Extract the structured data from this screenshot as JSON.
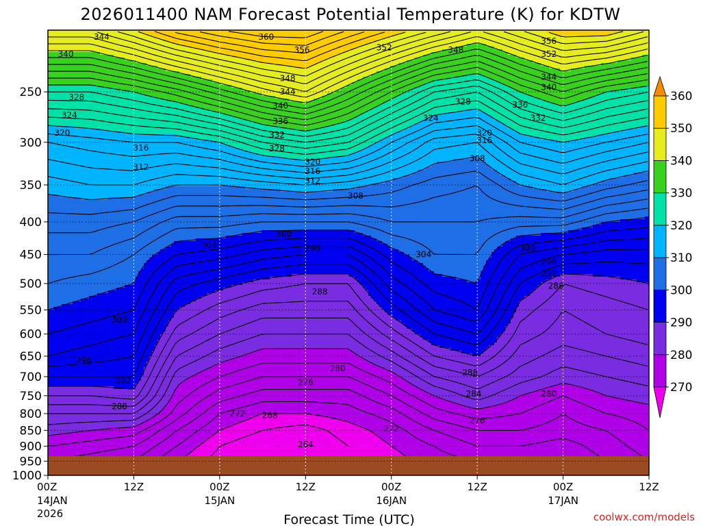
{
  "chart_data": {
    "type": "heatmap",
    "title": "2026011400 NAM Forecast Potential Temperature (K) for KDTW",
    "xlabel": "Forecast Time (UTC)",
    "ylabel": "",
    "x_ticks": [
      {
        "hour": 0,
        "label": "00Z",
        "day": "14JAN",
        "year": "2026"
      },
      {
        "hour": 12,
        "label": "12Z",
        "day": "",
        "year": ""
      },
      {
        "hour": 24,
        "label": "00Z",
        "day": "15JAN",
        "year": ""
      },
      {
        "hour": 36,
        "label": "12Z",
        "day": "",
        "year": ""
      },
      {
        "hour": 48,
        "label": "00Z",
        "day": "16JAN",
        "year": ""
      },
      {
        "hour": 60,
        "label": "12Z",
        "day": "",
        "year": ""
      },
      {
        "hour": 72,
        "label": "00Z",
        "day": "17JAN",
        "year": ""
      },
      {
        "hour": 84,
        "label": "12Z",
        "day": "",
        "year": ""
      }
    ],
    "xlim": [
      0,
      84
    ],
    "y_ticks": [
      250,
      300,
      350,
      400,
      450,
      500,
      550,
      600,
      650,
      700,
      750,
      800,
      850,
      900,
      950,
      1000
    ],
    "ylim": [
      1000,
      200
    ],
    "y_scale": "log-pressure",
    "grid": true,
    "ground_pressure": 975,
    "colorbar": {
      "levels": [
        270,
        280,
        290,
        300,
        310,
        320,
        330,
        340,
        350,
        360
      ],
      "labels": [
        "270",
        "280",
        "290",
        "300",
        "310",
        "320",
        "330",
        "340",
        "350",
        "360"
      ],
      "colors": [
        "#ee00ee",
        "#b000e8",
        "#7a2ce0",
        "#0000f0",
        "#1e6ee6",
        "#00b4ff",
        "#00e2a8",
        "#38d21e",
        "#e6ec1e",
        "#ffcc00",
        "#f58c00"
      ],
      "extend": "both"
    },
    "contour_interval": 2,
    "profiles": [
      {
        "hour": 0,
        "p": [
          1000,
          950,
          900,
          850,
          800,
          750,
          700,
          650,
          600,
          550,
          500,
          450,
          400,
          350,
          300,
          250,
          200
        ],
        "theta": [
          274,
          276,
          278,
          281,
          284,
          288,
          292,
          296,
          298,
          300,
          302,
          304,
          307,
          311,
          316,
          328,
          346
        ]
      },
      {
        "hour": 6,
        "p": [
          1000,
          950,
          900,
          850,
          800,
          750,
          700,
          650,
          600,
          550,
          500,
          450,
          400,
          350,
          300,
          250,
          200
        ],
        "theta": [
          273,
          275,
          277,
          280,
          284,
          288,
          292,
          295,
          297,
          299,
          301,
          304,
          307,
          312,
          317,
          328,
          346
        ]
      },
      {
        "hour": 12,
        "p": [
          1000,
          950,
          900,
          850,
          800,
          750,
          700,
          650,
          600,
          550,
          500,
          450,
          400,
          350,
          300,
          250,
          200
        ],
        "theta": [
          272,
          274,
          276,
          279,
          284,
          289,
          292,
          294,
          296,
          298,
          300,
          302,
          306,
          312,
          318,
          330,
          350
        ]
      },
      {
        "hour": 18,
        "p": [
          1000,
          950,
          900,
          850,
          800,
          750,
          700,
          650,
          600,
          550,
          500,
          450,
          400,
          350,
          300,
          250,
          200
        ],
        "theta": [
          268,
          270,
          272,
          274,
          277,
          279,
          281,
          284,
          287,
          290,
          293,
          298,
          303,
          310,
          318,
          333,
          355
        ]
      },
      {
        "hour": 24,
        "p": [
          1000,
          950,
          900,
          850,
          800,
          750,
          700,
          650,
          600,
          550,
          500,
          450,
          400,
          350,
          300,
          250,
          200
        ],
        "theta": [
          266,
          267,
          268,
          270,
          272,
          275,
          278,
          281,
          284,
          287,
          291,
          297,
          303,
          310,
          320,
          337,
          358
        ]
      },
      {
        "hour": 30,
        "p": [
          1000,
          950,
          900,
          850,
          800,
          750,
          700,
          650,
          600,
          550,
          500,
          450,
          400,
          350,
          300,
          250,
          200
        ],
        "theta": [
          265,
          266,
          266,
          268,
          270,
          273,
          276,
          279,
          282,
          285,
          289,
          295,
          302,
          311,
          324,
          341,
          360
        ]
      },
      {
        "hour": 36,
        "p": [
          1000,
          950,
          900,
          850,
          800,
          750,
          700,
          650,
          600,
          550,
          500,
          450,
          400,
          350,
          300,
          250,
          200
        ],
        "theta": [
          266,
          266,
          266,
          267,
          270,
          273,
          276,
          279,
          282,
          285,
          288,
          294,
          302,
          312,
          326,
          344,
          360
        ]
      },
      {
        "hour": 42,
        "p": [
          1000,
          950,
          900,
          850,
          800,
          750,
          700,
          650,
          600,
          550,
          500,
          450,
          400,
          350,
          300,
          250,
          200
        ],
        "theta": [
          268,
          268,
          268,
          269,
          271,
          273,
          276,
          279,
          282,
          285,
          288,
          294,
          302,
          311,
          324,
          338,
          356
        ]
      },
      {
        "hour": 48,
        "p": [
          1000,
          950,
          900,
          850,
          800,
          750,
          700,
          650,
          600,
          550,
          500,
          450,
          400,
          350,
          300,
          250,
          200
        ],
        "theta": [
          269,
          269,
          270,
          271,
          273,
          276,
          279,
          283,
          287,
          291,
          295,
          299,
          304,
          309,
          318,
          332,
          352
        ]
      },
      {
        "hour": 54,
        "p": [
          1000,
          950,
          900,
          850,
          800,
          750,
          700,
          650,
          600,
          550,
          500,
          450,
          400,
          350,
          300,
          250,
          200
        ],
        "theta": [
          270,
          271,
          272,
          274,
          277,
          280,
          284,
          288,
          292,
          296,
          299,
          302,
          304,
          307,
          313,
          326,
          348
        ]
      },
      {
        "hour": 60,
        "p": [
          1000,
          950,
          900,
          850,
          800,
          750,
          700,
          650,
          600,
          550,
          500,
          450,
          400,
          350,
          300,
          250,
          200
        ],
        "theta": [
          271,
          272,
          274,
          276,
          279,
          283,
          286,
          290,
          294,
          298,
          300,
          302,
          304,
          306,
          312,
          324,
          344
        ]
      },
      {
        "hour": 66,
        "p": [
          1000,
          950,
          900,
          850,
          800,
          750,
          700,
          650,
          600,
          550,
          500,
          450,
          400,
          350,
          300,
          250,
          200
        ],
        "theta": [
          271,
          272,
          274,
          276,
          278,
          280,
          283,
          285,
          287,
          289,
          292,
          296,
          303,
          310,
          318,
          330,
          348
        ]
      },
      {
        "hour": 72,
        "p": [
          1000,
          950,
          900,
          850,
          800,
          750,
          700,
          650,
          600,
          550,
          500,
          450,
          400,
          350,
          300,
          250,
          200
        ],
        "theta": [
          271,
          272,
          273,
          275,
          276,
          278,
          281,
          283,
          285,
          286,
          288,
          294,
          303,
          312,
          320,
          334,
          352
        ]
      },
      {
        "hour": 78,
        "p": [
          1000,
          950,
          900,
          850,
          800,
          750,
          700,
          650,
          600,
          550,
          500,
          450,
          400,
          350,
          300,
          250,
          200
        ],
        "theta": [
          273,
          274,
          275,
          276,
          278,
          280,
          282,
          284,
          286,
          287,
          289,
          293,
          300,
          309,
          318,
          330,
          352
        ]
      },
      {
        "hour": 84,
        "p": [
          1000,
          950,
          900,
          850,
          800,
          750,
          700,
          650,
          600,
          550,
          500,
          450,
          400,
          350,
          300,
          250,
          200
        ],
        "theta": [
          275,
          276,
          277,
          278,
          279,
          281,
          283,
          285,
          287,
          288,
          290,
          293,
          299,
          307,
          316,
          328,
          348
        ]
      }
    ],
    "annotations": [
      {
        "hour": 7.5,
        "p": 205,
        "text": "344"
      },
      {
        "hour": 2.5,
        "p": 218,
        "text": "340"
      },
      {
        "hour": 4,
        "p": 255,
        "text": "328"
      },
      {
        "hour": 3,
        "p": 272,
        "text": "324"
      },
      {
        "hour": 2,
        "p": 290,
        "text": "320"
      },
      {
        "hour": 13,
        "p": 306,
        "text": "316"
      },
      {
        "hour": 13,
        "p": 328,
        "text": "312"
      },
      {
        "hour": 10,
        "p": 570,
        "text": "300"
      },
      {
        "hour": 5,
        "p": 660,
        "text": "296"
      },
      {
        "hour": 10.5,
        "p": 710,
        "text": "292"
      },
      {
        "hour": 10,
        "p": 780,
        "text": "288"
      },
      {
        "hour": 30.5,
        "p": 205,
        "text": "360"
      },
      {
        "hour": 35.5,
        "p": 215,
        "text": "356"
      },
      {
        "hour": 33.5,
        "p": 238,
        "text": "348"
      },
      {
        "hour": 33.5,
        "p": 250,
        "text": "344"
      },
      {
        "hour": 32.5,
        "p": 263,
        "text": "340"
      },
      {
        "hour": 32.5,
        "p": 278,
        "text": "336"
      },
      {
        "hour": 32,
        "p": 292,
        "text": "332"
      },
      {
        "hour": 32,
        "p": 307,
        "text": "328"
      },
      {
        "hour": 37,
        "p": 322,
        "text": "320"
      },
      {
        "hour": 37,
        "p": 333,
        "text": "316"
      },
      {
        "hour": 37,
        "p": 345,
        "text": "312"
      },
      {
        "hour": 43,
        "p": 364,
        "text": "308"
      },
      {
        "hour": 22.5,
        "p": 435,
        "text": "304"
      },
      {
        "hour": 33,
        "p": 418,
        "text": "300"
      },
      {
        "hour": 37,
        "p": 440,
        "text": "296"
      },
      {
        "hour": 38,
        "p": 515,
        "text": "288"
      },
      {
        "hour": 40.5,
        "p": 680,
        "text": "280"
      },
      {
        "hour": 36,
        "p": 715,
        "text": "276"
      },
      {
        "hour": 26.5,
        "p": 800,
        "text": "272"
      },
      {
        "hour": 31,
        "p": 805,
        "text": "268"
      },
      {
        "hour": 36,
        "p": 895,
        "text": "264"
      },
      {
        "hour": 48,
        "p": 845,
        "text": "272"
      },
      {
        "hour": 47,
        "p": 213,
        "text": "352"
      },
      {
        "hour": 57,
        "p": 215,
        "text": "348"
      },
      {
        "hour": 53.5,
        "p": 275,
        "text": "324"
      },
      {
        "hour": 58,
        "p": 259,
        "text": "328"
      },
      {
        "hour": 61,
        "p": 290,
        "text": "320"
      },
      {
        "hour": 61,
        "p": 298,
        "text": "316"
      },
      {
        "hour": 60,
        "p": 318,
        "text": "308"
      },
      {
        "hour": 52.5,
        "p": 450,
        "text": "304"
      },
      {
        "hour": 59,
        "p": 690,
        "text": "288"
      },
      {
        "hour": 59.5,
        "p": 745,
        "text": "284"
      },
      {
        "hour": 60,
        "p": 820,
        "text": "276"
      },
      {
        "hour": 70,
        "p": 208,
        "text": "356"
      },
      {
        "hour": 70,
        "p": 218,
        "text": "352"
      },
      {
        "hour": 70,
        "p": 237,
        "text": "344"
      },
      {
        "hour": 70,
        "p": 246,
        "text": "340"
      },
      {
        "hour": 66,
        "p": 262,
        "text": "336"
      },
      {
        "hour": 68.5,
        "p": 275,
        "text": "332"
      },
      {
        "hour": 67,
        "p": 440,
        "text": "300"
      },
      {
        "hour": 70,
        "p": 462,
        "text": "296"
      },
      {
        "hour": 70,
        "p": 482,
        "text": "292"
      },
      {
        "hour": 71,
        "p": 504,
        "text": "288"
      },
      {
        "hour": 70,
        "p": 745,
        "text": "280"
      }
    ]
  },
  "credit": "coolwx.com/models"
}
